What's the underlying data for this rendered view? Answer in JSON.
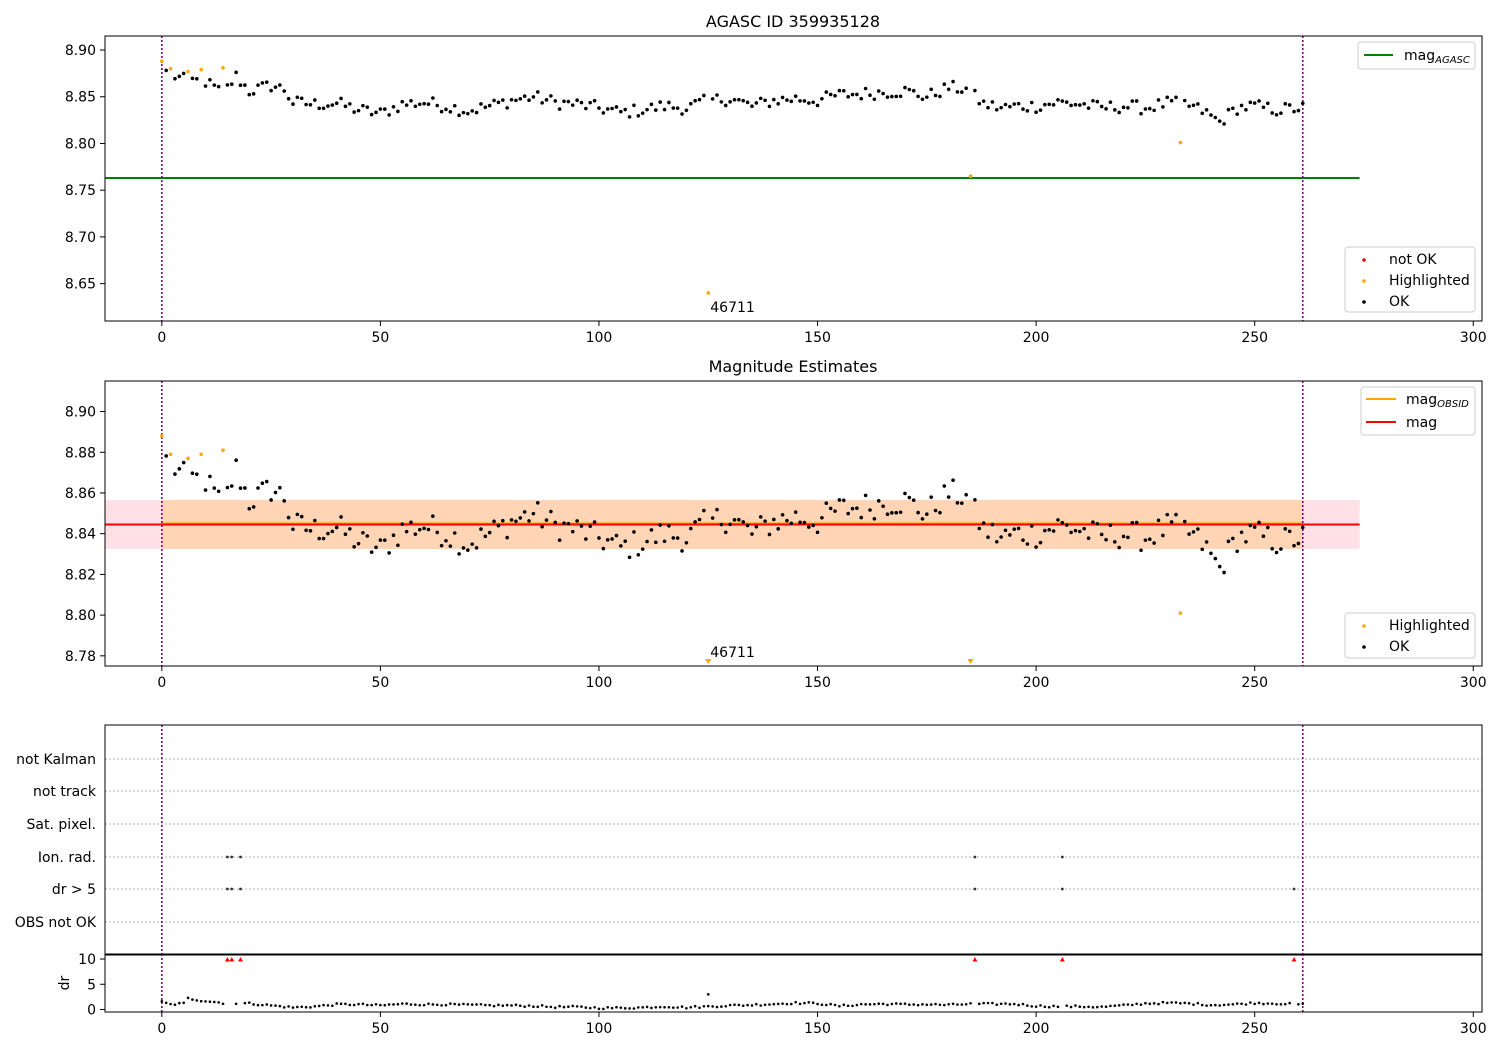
{
  "chart_data": [
    {
      "type": "scatter",
      "title": "AGASC ID 359935128",
      "xlim": [
        -13,
        302
      ],
      "ylim": [
        8.61,
        8.915
      ],
      "xticks": [
        0,
        50,
        100,
        150,
        200,
        250,
        300
      ],
      "yticks": [
        8.65,
        8.7,
        8.75,
        8.8,
        8.85,
        8.9
      ],
      "ytick_labels": [
        "8.65",
        "8.70",
        "8.75",
        "8.80",
        "8.85",
        "8.90"
      ],
      "vlines": [
        0,
        261
      ],
      "hline": {
        "name": "mag_AGASC",
        "legend_main": "mag",
        "legend_sub": "AGASC",
        "y": 8.763,
        "x": [
          -13,
          274
        ],
        "color": "#008000"
      },
      "series": [
        {
          "name": "not OK",
          "color": "#ff0000",
          "points": []
        },
        {
          "name": "Highlighted",
          "color": "#ffa500",
          "points": [
            [
              0,
              8.888
            ],
            [
              2,
              8.88
            ],
            [
              6,
              8.877
            ],
            [
              9,
              8.879
            ],
            [
              14,
              8.881
            ],
            [
              185,
              8.765
            ],
            [
              233,
              8.801
            ],
            [
              125,
              8.64
            ]
          ]
        },
        {
          "name": "OK",
          "color": "#000000",
          "points": []
        }
      ],
      "ok_profile": [
        [
          1,
          8.876
        ],
        [
          5,
          8.868
        ],
        [
          10,
          8.866
        ],
        [
          14,
          8.853
        ],
        [
          17,
          8.872
        ],
        [
          20,
          8.856
        ],
        [
          25,
          8.862
        ],
        [
          28,
          8.858
        ],
        [
          30,
          8.844
        ],
        [
          35,
          8.842
        ],
        [
          40,
          8.843
        ],
        [
          45,
          8.836
        ],
        [
          50,
          8.832
        ],
        [
          55,
          8.842
        ],
        [
          60,
          8.844
        ],
        [
          65,
          8.84
        ],
        [
          70,
          8.835
        ],
        [
          75,
          8.84
        ],
        [
          80,
          8.846
        ],
        [
          85,
          8.85
        ],
        [
          90,
          8.844
        ],
        [
          95,
          8.842
        ],
        [
          100,
          8.838
        ],
        [
          105,
          8.833
        ],
        [
          110,
          8.836
        ],
        [
          115,
          8.84
        ],
        [
          120,
          8.838
        ],
        [
          125,
          8.846
        ],
        [
          130,
          8.848
        ],
        [
          135,
          8.84
        ],
        [
          140,
          8.846
        ],
        [
          145,
          8.848
        ],
        [
          150,
          8.846
        ],
        [
          155,
          8.852
        ],
        [
          160,
          8.853
        ],
        [
          165,
          8.855
        ],
        [
          170,
          8.856
        ],
        [
          175,
          8.85
        ],
        [
          180,
          8.86
        ],
        [
          184,
          8.858
        ],
        [
          188,
          8.842
        ],
        [
          192,
          8.838
        ],
        [
          196,
          8.84
        ],
        [
          200,
          8.84
        ],
        [
          205,
          8.844
        ],
        [
          210,
          8.842
        ],
        [
          215,
          8.838
        ],
        [
          220,
          8.84
        ],
        [
          225,
          8.838
        ],
        [
          230,
          8.843
        ],
        [
          234,
          8.842
        ],
        [
          238,
          8.835
        ],
        [
          242,
          8.823
        ],
        [
          246,
          8.838
        ],
        [
          250,
          8.84
        ],
        [
          255,
          8.836
        ],
        [
          261,
          8.838
        ]
      ],
      "annotation": {
        "text": "46711",
        "x": 125,
        "y": 8.64
      }
    },
    {
      "type": "scatter",
      "title": "Magnitude Estimates",
      "xlim": [
        -13,
        302
      ],
      "ylim": [
        8.775,
        8.915
      ],
      "xticks": [
        0,
        50,
        100,
        150,
        200,
        250,
        300
      ],
      "yticks": [
        8.78,
        8.8,
        8.82,
        8.84,
        8.86,
        8.88,
        8.9
      ],
      "ytick_labels": [
        "8.78",
        "8.80",
        "8.82",
        "8.84",
        "8.86",
        "8.88",
        "8.90"
      ],
      "vlines": [
        0,
        261
      ],
      "mag_line": {
        "name": "mag",
        "y": 8.8445,
        "x": [
          -13,
          274
        ],
        "color": "#ff0000",
        "band": [
          8.8325,
          8.8565
        ],
        "band_color": "#ffe0e6"
      },
      "mag_obsid": {
        "name": "mag_OBSID",
        "legend_main": "mag",
        "legend_sub": "OBSID",
        "y": 8.845,
        "x": [
          0,
          261
        ],
        "color": "#ffa500",
        "band": [
          8.8325,
          8.8565
        ],
        "band_color": "#ffd5b5"
      },
      "series": [
        {
          "name": "Highlighted",
          "color": "#ffa500",
          "points": [
            [
              0,
              8.888
            ],
            [
              2,
              8.879
            ],
            [
              6,
              8.877
            ],
            [
              9,
              8.879
            ],
            [
              14,
              8.881
            ],
            [
              233,
              8.801
            ]
          ]
        },
        {
          "name": "OK",
          "color": "#000000",
          "points": []
        }
      ],
      "off_scale": [
        125,
        185
      ],
      "annotation": {
        "text": "46711",
        "x": 125
      }
    },
    {
      "type": "scatter",
      "xlim": [
        -13,
        302
      ],
      "rows": [
        "not Kalman",
        "not track",
        "Sat. pixel.",
        "Ion. rad.",
        "dr > 5",
        "OBS not OK"
      ],
      "row_points": {
        "Ion. rad.": [
          15,
          16,
          18,
          186,
          206
        ],
        "dr > 5": [
          15,
          16,
          18,
          186,
          206,
          259
        ]
      },
      "vlines": [
        0,
        261
      ]
    },
    {
      "type": "scatter",
      "ylabel": "dr",
      "xlim": [
        -13,
        302
      ],
      "ylim": [
        -0.5,
        11
      ],
      "xticks": [
        0,
        50,
        100,
        150,
        200,
        250,
        300
      ],
      "yticks": [
        0,
        5,
        10
      ],
      "ytick_labels": [
        "0",
        "5",
        "10"
      ],
      "vlines": [
        0,
        261
      ],
      "outliers_red": [
        15,
        16,
        18,
        186,
        206,
        259
      ],
      "dr_profile": [
        [
          0,
          1.5
        ],
        [
          2,
          1.0
        ],
        [
          5,
          1.2
        ],
        [
          6,
          2.2
        ],
        [
          9,
          1.8
        ],
        [
          12,
          1.5
        ],
        [
          15,
          1.2
        ],
        [
          20,
          1.2
        ],
        [
          25,
          0.8
        ],
        [
          30,
          0.4
        ],
        [
          35,
          0.6
        ],
        [
          40,
          1.0
        ],
        [
          45,
          1.0
        ],
        [
          50,
          0.8
        ],
        [
          55,
          1.1
        ],
        [
          60,
          1.0
        ],
        [
          65,
          1.0
        ],
        [
          70,
          0.9
        ],
        [
          75,
          0.8
        ],
        [
          80,
          0.8
        ],
        [
          85,
          0.7
        ],
        [
          90,
          0.5
        ],
        [
          95,
          0.5
        ],
        [
          100,
          0.3
        ],
        [
          105,
          0.3
        ],
        [
          110,
          0.4
        ],
        [
          115,
          0.6
        ],
        [
          120,
          0.4
        ],
        [
          125,
          0.6
        ],
        [
          130,
          0.8
        ],
        [
          135,
          0.9
        ],
        [
          140,
          1.1
        ],
        [
          145,
          1.3
        ],
        [
          150,
          1.2
        ],
        [
          155,
          0.7
        ],
        [
          160,
          1.0
        ],
        [
          165,
          1.1
        ],
        [
          170,
          1.0
        ],
        [
          175,
          1.0
        ],
        [
          180,
          0.9
        ],
        [
          185,
          1.1
        ],
        [
          190,
          1.1
        ],
        [
          195,
          1.1
        ],
        [
          200,
          0.7
        ],
        [
          205,
          0.6
        ],
        [
          210,
          0.6
        ],
        [
          215,
          0.5
        ],
        [
          220,
          0.8
        ],
        [
          225,
          1.2
        ],
        [
          230,
          1.3
        ],
        [
          235,
          1.2
        ],
        [
          240,
          0.9
        ],
        [
          245,
          1.0
        ],
        [
          250,
          1.3
        ],
        [
          255,
          1.2
        ],
        [
          260,
          1.0
        ]
      ],
      "dr_spike": {
        "x": 125,
        "y": 3.0
      }
    }
  ],
  "legends": {
    "top_status": [
      "not OK",
      "Highlighted",
      "OK"
    ],
    "mid_status": [
      "Highlighted",
      "OK"
    ]
  }
}
